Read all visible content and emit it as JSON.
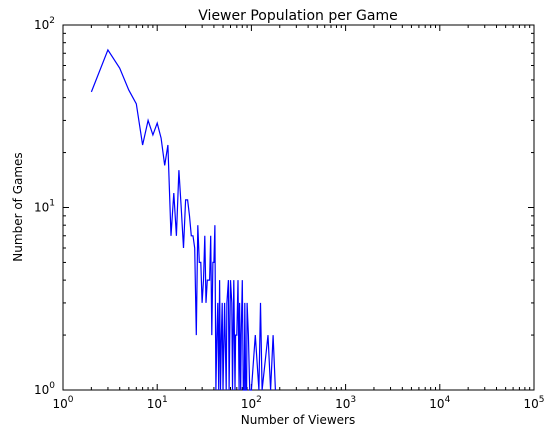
{
  "chart_data": {
    "type": "line",
    "title": "Viewer Population per Game",
    "xlabel": "Number of Viewers",
    "ylabel": "Number of Games",
    "xscale": "log",
    "yscale": "log",
    "xlim": [
      1,
      100000
    ],
    "ylim": [
      1,
      100
    ],
    "grid": false,
    "legend": "none",
    "line_color": "#0000ff",
    "x_ticks": [
      {
        "value": 1,
        "base": "10",
        "exp": "0"
      },
      {
        "value": 10,
        "base": "10",
        "exp": "1"
      },
      {
        "value": 100,
        "base": "10",
        "exp": "2"
      },
      {
        "value": 1000,
        "base": "10",
        "exp": "3"
      },
      {
        "value": 10000,
        "base": "10",
        "exp": "4"
      },
      {
        "value": 100000,
        "base": "10",
        "exp": "5"
      }
    ],
    "y_ticks": [
      {
        "value": 1,
        "base": "10",
        "exp": "0"
      },
      {
        "value": 10,
        "base": "10",
        "exp": "1"
      },
      {
        "value": 100,
        "base": "10",
        "exp": "2"
      }
    ],
    "series": [
      {
        "x": [
          2,
          3,
          4,
          5,
          6,
          7,
          8,
          9,
          10,
          11,
          12,
          13,
          14,
          15,
          16,
          17,
          18,
          19,
          20,
          21,
          22,
          23,
          24,
          25,
          26,
          27,
          28,
          29,
          30,
          31,
          32,
          33,
          34,
          35,
          36,
          37,
          38,
          39,
          40,
          41,
          42,
          43,
          44,
          45,
          46,
          47,
          48,
          49,
          50,
          52,
          54,
          55,
          57,
          58,
          60,
          62,
          63,
          65,
          67,
          68,
          70,
          72,
          74,
          75,
          77,
          78,
          80,
          82,
          84,
          85,
          87,
          89,
          90,
          93,
          96,
          100,
          110,
          120,
          125,
          130,
          150,
          160,
          170,
          180
        ],
        "y": [
          43,
          73,
          58,
          44,
          37,
          22,
          30,
          25,
          29,
          24,
          17,
          22,
          7,
          12,
          7,
          16,
          10,
          6,
          11,
          11,
          9,
          7,
          7,
          6,
          2,
          8,
          5,
          5,
          3,
          4,
          7,
          3,
          4,
          4,
          4,
          7,
          2,
          5,
          5,
          8,
          1,
          2,
          3,
          1,
          4,
          1,
          2,
          3,
          1,
          3,
          1,
          3,
          4,
          1,
          4,
          3,
          1,
          4,
          1,
          2,
          2,
          4,
          1,
          3,
          1,
          2,
          4,
          1,
          1,
          3,
          1,
          1,
          3,
          2,
          1,
          1,
          2,
          1,
          3,
          1,
          2,
          1,
          2,
          1
        ]
      }
    ]
  }
}
